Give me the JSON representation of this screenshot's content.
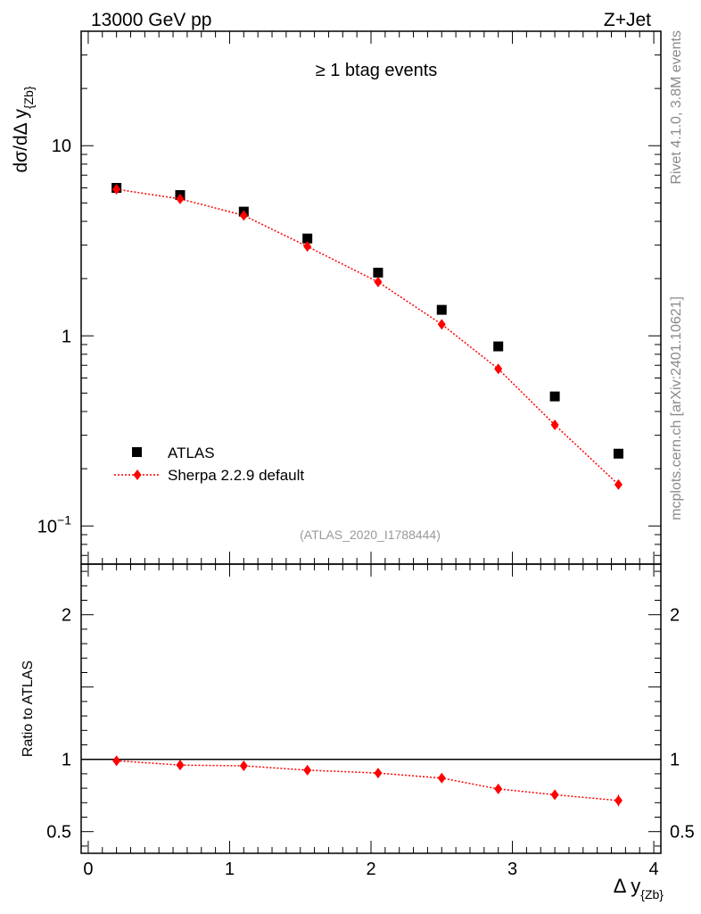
{
  "header": {
    "left": "13000 GeV pp",
    "right": "Z+Jet"
  },
  "side_labels": {
    "rivet": "Rivet 4.1.0,  3.8M events",
    "mcplots": "mcplots.cern.ch [arXiv:2401.10621]"
  },
  "chart_data": [
    {
      "type": "scatter",
      "panel": "main",
      "title": "≥ 1 btag events",
      "ylabel": "dσ/dΔ y",
      "ylabel_sub": "{Zb}",
      "yscale": "log",
      "ylim": [
        0.063,
        40
      ],
      "xlim": [
        -0.05,
        4.05
      ],
      "y_ticks": [
        {
          "value": 10,
          "label": "10"
        },
        {
          "value": 1,
          "label": "1"
        },
        {
          "value": 0.1,
          "label": "10",
          "sup": "−1"
        }
      ],
      "watermark": "(ATLAS_2020_I1788444)",
      "legend": [
        {
          "name": "ATLAS",
          "marker": "square",
          "color": "#000000"
        },
        {
          "name": "Sherpa 2.2.9 default",
          "marker": "diamond",
          "color": "#ff0000"
        }
      ],
      "series": [
        {
          "name": "ATLAS",
          "color": "#000000",
          "x": [
            0.2,
            0.65,
            1.1,
            1.55,
            2.05,
            2.5,
            2.9,
            3.3,
            3.75
          ],
          "y": [
            6.0,
            5.5,
            4.5,
            3.25,
            2.15,
            1.37,
            0.88,
            0.48,
            0.24
          ]
        },
        {
          "name": "Sherpa 2.2.9 default",
          "color": "#ff0000",
          "x": [
            0.2,
            0.65,
            1.1,
            1.55,
            2.05,
            2.5,
            2.9,
            3.3,
            3.75
          ],
          "y": [
            5.9,
            5.25,
            4.3,
            2.95,
            1.92,
            1.15,
            0.67,
            0.34,
            0.165
          ]
        }
      ]
    },
    {
      "type": "scatter",
      "panel": "ratio",
      "ylabel": "Ratio to ATLAS",
      "xlabel": "Δ y",
      "xlabel_sub": "{Zb}",
      "yscale": "linear",
      "ylim": [
        0.35,
        2.35
      ],
      "xlim": [
        -0.05,
        4.05
      ],
      "x_ticks": [
        "0",
        "1",
        "2",
        "3",
        "4"
      ],
      "y_ticks": [
        {
          "value": 2,
          "label": "2"
        },
        {
          "value": 1,
          "label": "1"
        },
        {
          "value": 0.5,
          "label": "0.5"
        }
      ],
      "series": [
        {
          "name": "Sherpa 2.2.9 default / ATLAS",
          "color": "#ff0000",
          "x": [
            0.2,
            0.65,
            1.1,
            1.55,
            2.05,
            2.5,
            2.9,
            3.3,
            3.75
          ],
          "y": [
            0.99,
            0.96,
            0.955,
            0.925,
            0.905,
            0.87,
            0.795,
            0.755,
            0.715
          ],
          "err": [
            0.01,
            0.012,
            0.013,
            0.015,
            0.015,
            0.017,
            0.02,
            0.03,
            0.04
          ]
        }
      ]
    }
  ]
}
